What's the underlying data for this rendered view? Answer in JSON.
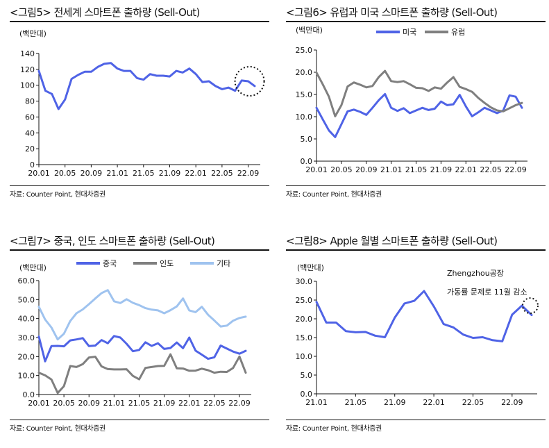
{
  "panels": [
    {
      "title": "<그림5> 전세계 스마트폰 출하량 (Sell-Out)",
      "source": "자료: Counter Point, 현대차증권"
    },
    {
      "title": "<그림6> 유럽과 미국 스마트폰 출하량 (Sell-Out)",
      "source": "자료: Counter Point, 현대차증권"
    },
    {
      "title": "<그림7> 중국, 인도 스마트폰 출하량 (Sell-Out)",
      "source": "자료: Counter Point, 현대차증권"
    },
    {
      "title": "<그림8> Apple 월별 스마트폰 출하량 (Sell-Out)",
      "source": "자료: Counter Point, 현대차증권"
    }
  ],
  "colors": {
    "blue": "#4f63e6",
    "gray": "#7f7f7f",
    "light_blue": "#9fc3ef"
  },
  "chart_data": [
    {
      "type": "line",
      "unit_label": "(백만대)",
      "ylim": [
        0,
        140
      ],
      "yticks": [
        "0",
        "20",
        "40",
        "60",
        "80",
        "100",
        "120",
        "140"
      ],
      "x_count": 34,
      "xtick_labels": [
        "20.01",
        "20.05",
        "20.09",
        "21.01",
        "21.05",
        "21.09",
        "22.01",
        "22.05",
        "22.09"
      ],
      "xtick_index": [
        0,
        4,
        8,
        12,
        16,
        20,
        24,
        28,
        32
      ],
      "legend": "none",
      "highlight": "last-points-circle",
      "series": [
        {
          "color": "blue",
          "values": [
            118,
            93,
            89,
            70,
            82,
            108,
            113,
            117,
            117,
            123,
            127,
            128,
            121,
            118,
            118,
            109,
            107,
            114,
            112,
            112,
            111,
            118,
            116,
            121,
            114,
            104,
            105,
            99,
            95,
            97,
            93,
            106,
            105,
            99
          ]
        }
      ]
    },
    {
      "type": "line",
      "unit_label": "(백만대)",
      "ylim": [
        0,
        25
      ],
      "yticks": [
        "0.0",
        "5.0",
        "10.0",
        "15.0",
        "20.0",
        "25.0"
      ],
      "x_count": 34,
      "xtick_labels": [
        "20.01",
        "20.05",
        "20.09",
        "21.01",
        "21.05",
        "21.09",
        "22.01",
        "22.05",
        "22.09"
      ],
      "xtick_index": [
        0,
        4,
        8,
        12,
        16,
        20,
        24,
        28,
        32
      ],
      "legend": "top-center",
      "series": [
        {
          "name": "미국",
          "color": "blue",
          "values": [
            12.0,
            9.4,
            6.9,
            5.4,
            8.3,
            11.2,
            11.6,
            11.1,
            10.4,
            12.0,
            13.7,
            15.1,
            12.0,
            11.3,
            11.9,
            10.8,
            11.4,
            12.0,
            11.5,
            11.8,
            13.4,
            12.6,
            12.8,
            14.9,
            12.3,
            10.1,
            11.0,
            12.0,
            11.4,
            10.8,
            11.4,
            14.8,
            14.5,
            12.0
          ]
        },
        {
          "name": "유럽",
          "color": "gray",
          "values": [
            19.9,
            17.3,
            14.5,
            10.1,
            12.6,
            16.8,
            17.7,
            17.2,
            16.6,
            16.9,
            18.9,
            20.3,
            18.0,
            17.8,
            18.0,
            17.3,
            16.5,
            16.4,
            15.8,
            16.6,
            16.3,
            17.7,
            18.9,
            16.7,
            16.2,
            15.6,
            14.2,
            13.1,
            12.1,
            11.4,
            11.2,
            11.9,
            12.6,
            13.1
          ]
        }
      ]
    },
    {
      "type": "line",
      "unit_label": "(백만대)",
      "ylim": [
        0,
        60
      ],
      "yticks": [
        "0.0",
        "10.0",
        "20.0",
        "30.0",
        "40.0",
        "50.0",
        "60.0"
      ],
      "x_count": 34,
      "xtick_labels": [
        "20.01",
        "20.05",
        "20.09",
        "21.01",
        "21.05",
        "21.09",
        "22.01",
        "22.05",
        "22.09"
      ],
      "xtick_index": [
        0,
        4,
        8,
        12,
        16,
        20,
        24,
        28,
        32
      ],
      "legend": "top-center",
      "series": [
        {
          "name": "중국",
          "color": "blue",
          "values": [
            30.5,
            17.5,
            25.5,
            25.6,
            25.4,
            28.5,
            29.0,
            29.7,
            25.5,
            25.8,
            28.7,
            27.0,
            30.8,
            30.0,
            26.7,
            22.8,
            23.5,
            27.5,
            25.6,
            27.0,
            24.0,
            24.5,
            27.4,
            24.4,
            30.0,
            23.1,
            21.0,
            18.8,
            19.6,
            25.8,
            24.2,
            22.6,
            21.5,
            23.0
          ]
        },
        {
          "name": "인도",
          "color": "gray",
          "values": [
            11.5,
            10.1,
            7.9,
            0.8,
            4.4,
            15.0,
            14.5,
            16.0,
            19.5,
            19.9,
            14.8,
            13.4,
            13.2,
            13.2,
            13.3,
            9.8,
            8.0,
            14.0,
            14.5,
            15.0,
            15.1,
            21.2,
            13.8,
            13.7,
            12.5,
            12.6,
            13.6,
            12.8,
            11.5,
            12.0,
            11.9,
            14.0,
            20.0,
            11.5
          ]
        },
        {
          "name": "기타",
          "color": "light_blue",
          "values": [
            46.2,
            39.5,
            35.3,
            29.0,
            32.0,
            38.7,
            42.8,
            44.8,
            47.6,
            50.6,
            53.4,
            55.0,
            49.1,
            48.2,
            50.2,
            48.3,
            47.1,
            45.5,
            44.7,
            44.3,
            42.8,
            44.4,
            46.4,
            50.6,
            44.3,
            43.4,
            46.2,
            42.0,
            39.0,
            35.8,
            36.3,
            38.9,
            40.3,
            41.0
          ]
        }
      ]
    },
    {
      "type": "line",
      "unit_label": "(백만대)",
      "ylim": [
        0,
        30
      ],
      "yticks": [
        "0.0",
        "5.0",
        "10.0",
        "15.0",
        "20.0",
        "25.0",
        "30.0"
      ],
      "x_count": 23,
      "xtick_labels": [
        "21.01",
        "21.05",
        "21.09",
        "22.01",
        "22.05",
        "22.09"
      ],
      "xtick_index": [
        0,
        4,
        8,
        12,
        16,
        20
      ],
      "legend": "none",
      "annotation": [
        "Zhengzhou공장",
        "가동률 문제로 11월 감소"
      ],
      "highlight": "last-points-circle",
      "series": [
        {
          "color": "blue",
          "values": [
            24.5,
            19.0,
            19.0,
            16.7,
            16.4,
            16.5,
            15.5,
            15.1,
            20.3,
            24.1,
            24.8,
            27.4,
            23.3,
            18.6,
            17.7,
            15.8,
            14.9,
            15.1,
            14.3,
            14.0,
            21.1,
            23.5,
            21.0
          ]
        }
      ]
    }
  ]
}
